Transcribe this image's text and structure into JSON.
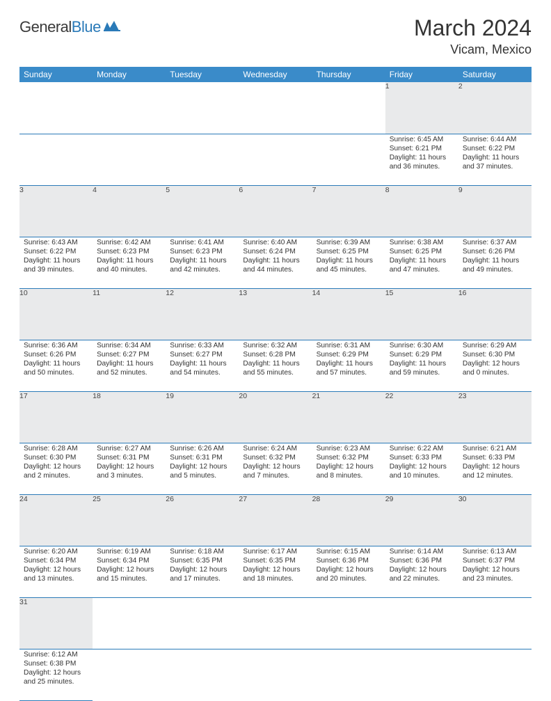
{
  "logo": {
    "text1": "General",
    "text2": "Blue"
  },
  "title": "March 2024",
  "location": "Vicam, Mexico",
  "colors": {
    "header_bg": "#3a8bc9",
    "border": "#2a7ab8",
    "daynum_bg": "#e9eaeb",
    "text": "#333333"
  },
  "daynames": [
    "Sunday",
    "Monday",
    "Tuesday",
    "Wednesday",
    "Thursday",
    "Friday",
    "Saturday"
  ],
  "weeks": [
    [
      null,
      null,
      null,
      null,
      null,
      {
        "n": "1",
        "sr": "6:45 AM",
        "ss": "6:21 PM",
        "dl": "11 hours and 36 minutes."
      },
      {
        "n": "2",
        "sr": "6:44 AM",
        "ss": "6:22 PM",
        "dl": "11 hours and 37 minutes."
      }
    ],
    [
      {
        "n": "3",
        "sr": "6:43 AM",
        "ss": "6:22 PM",
        "dl": "11 hours and 39 minutes."
      },
      {
        "n": "4",
        "sr": "6:42 AM",
        "ss": "6:23 PM",
        "dl": "11 hours and 40 minutes."
      },
      {
        "n": "5",
        "sr": "6:41 AM",
        "ss": "6:23 PM",
        "dl": "11 hours and 42 minutes."
      },
      {
        "n": "6",
        "sr": "6:40 AM",
        "ss": "6:24 PM",
        "dl": "11 hours and 44 minutes."
      },
      {
        "n": "7",
        "sr": "6:39 AM",
        "ss": "6:25 PM",
        "dl": "11 hours and 45 minutes."
      },
      {
        "n": "8",
        "sr": "6:38 AM",
        "ss": "6:25 PM",
        "dl": "11 hours and 47 minutes."
      },
      {
        "n": "9",
        "sr": "6:37 AM",
        "ss": "6:26 PM",
        "dl": "11 hours and 49 minutes."
      }
    ],
    [
      {
        "n": "10",
        "sr": "6:36 AM",
        "ss": "6:26 PM",
        "dl": "11 hours and 50 minutes."
      },
      {
        "n": "11",
        "sr": "6:34 AM",
        "ss": "6:27 PM",
        "dl": "11 hours and 52 minutes."
      },
      {
        "n": "12",
        "sr": "6:33 AM",
        "ss": "6:27 PM",
        "dl": "11 hours and 54 minutes."
      },
      {
        "n": "13",
        "sr": "6:32 AM",
        "ss": "6:28 PM",
        "dl": "11 hours and 55 minutes."
      },
      {
        "n": "14",
        "sr": "6:31 AM",
        "ss": "6:29 PM",
        "dl": "11 hours and 57 minutes."
      },
      {
        "n": "15",
        "sr": "6:30 AM",
        "ss": "6:29 PM",
        "dl": "11 hours and 59 minutes."
      },
      {
        "n": "16",
        "sr": "6:29 AM",
        "ss": "6:30 PM",
        "dl": "12 hours and 0 minutes."
      }
    ],
    [
      {
        "n": "17",
        "sr": "6:28 AM",
        "ss": "6:30 PM",
        "dl": "12 hours and 2 minutes."
      },
      {
        "n": "18",
        "sr": "6:27 AM",
        "ss": "6:31 PM",
        "dl": "12 hours and 3 minutes."
      },
      {
        "n": "19",
        "sr": "6:26 AM",
        "ss": "6:31 PM",
        "dl": "12 hours and 5 minutes."
      },
      {
        "n": "20",
        "sr": "6:24 AM",
        "ss": "6:32 PM",
        "dl": "12 hours and 7 minutes."
      },
      {
        "n": "21",
        "sr": "6:23 AM",
        "ss": "6:32 PM",
        "dl": "12 hours and 8 minutes."
      },
      {
        "n": "22",
        "sr": "6:22 AM",
        "ss": "6:33 PM",
        "dl": "12 hours and 10 minutes."
      },
      {
        "n": "23",
        "sr": "6:21 AM",
        "ss": "6:33 PM",
        "dl": "12 hours and 12 minutes."
      }
    ],
    [
      {
        "n": "24",
        "sr": "6:20 AM",
        "ss": "6:34 PM",
        "dl": "12 hours and 13 minutes."
      },
      {
        "n": "25",
        "sr": "6:19 AM",
        "ss": "6:34 PM",
        "dl": "12 hours and 15 minutes."
      },
      {
        "n": "26",
        "sr": "6:18 AM",
        "ss": "6:35 PM",
        "dl": "12 hours and 17 minutes."
      },
      {
        "n": "27",
        "sr": "6:17 AM",
        "ss": "6:35 PM",
        "dl": "12 hours and 18 minutes."
      },
      {
        "n": "28",
        "sr": "6:15 AM",
        "ss": "6:36 PM",
        "dl": "12 hours and 20 minutes."
      },
      {
        "n": "29",
        "sr": "6:14 AM",
        "ss": "6:36 PM",
        "dl": "12 hours and 22 minutes."
      },
      {
        "n": "30",
        "sr": "6:13 AM",
        "ss": "6:37 PM",
        "dl": "12 hours and 23 minutes."
      }
    ],
    [
      {
        "n": "31",
        "sr": "6:12 AM",
        "ss": "6:38 PM",
        "dl": "12 hours and 25 minutes."
      },
      null,
      null,
      null,
      null,
      null,
      null
    ]
  ],
  "labels": {
    "sunrise": "Sunrise: ",
    "sunset": "Sunset: ",
    "daylight": "Daylight: "
  }
}
